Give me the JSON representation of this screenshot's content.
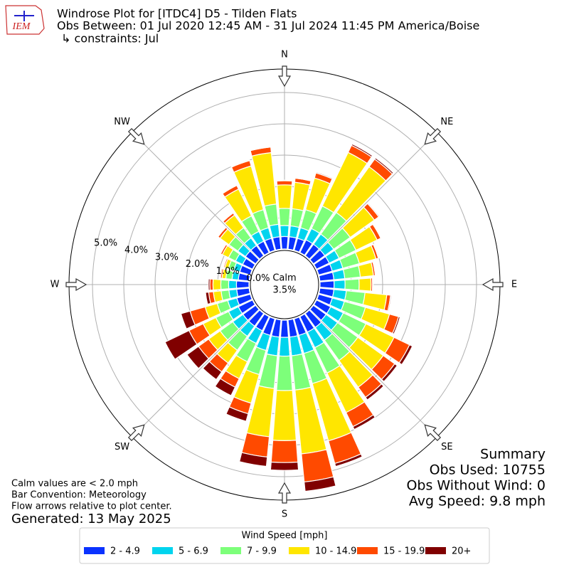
{
  "chart_data": {
    "type": "windrose",
    "title": "Windrose Plot for [ITDC4] D5 - Tilden Flats",
    "subtitle": [
      "Obs Between: 01 Jul 2020 12:45 AM - 31 Jul 2024 11:45 PM America/Boise",
      "↳ constraints: Jul"
    ],
    "x": [
      0,
      10,
      20,
      30,
      40,
      50,
      60,
      70,
      80,
      90,
      100,
      110,
      120,
      130,
      140,
      150,
      160,
      170,
      180,
      190,
      200,
      210,
      220,
      230,
      240,
      250,
      260,
      270,
      280,
      290,
      300,
      310,
      320,
      330,
      340,
      350
    ],
    "series": [
      {
        "name": "2 - 4.9",
        "color": "#0a32ff",
        "values": [
          0.4,
          0.4,
          0.4,
          0.45,
          0.45,
          0.45,
          0.45,
          0.45,
          0.45,
          0.45,
          0.45,
          0.45,
          0.5,
          0.5,
          0.55,
          0.55,
          0.55,
          0.55,
          0.55,
          0.55,
          0.55,
          0.5,
          0.5,
          0.5,
          0.5,
          0.45,
          0.4,
          0.4,
          0.35,
          0.35,
          0.35,
          0.4,
          0.4,
          0.4,
          0.4,
          0.4
        ]
      },
      {
        "name": "5 - 6.9",
        "color": "#00d4ee",
        "values": [
          0.35,
          0.35,
          0.35,
          0.4,
          0.4,
          0.35,
          0.35,
          0.35,
          0.35,
          0.35,
          0.4,
          0.4,
          0.45,
          0.45,
          0.5,
          0.55,
          0.6,
          0.6,
          0.6,
          0.6,
          0.5,
          0.45,
          0.4,
          0.4,
          0.35,
          0.3,
          0.25,
          0.25,
          0.2,
          0.2,
          0.25,
          0.3,
          0.3,
          0.35,
          0.35,
          0.4
        ]
      },
      {
        "name": "7 - 9.9",
        "color": "#7dff7a",
        "values": [
          0.55,
          0.55,
          0.6,
          0.8,
          0.85,
          0.65,
          0.6,
          0.55,
          0.5,
          0.45,
          0.6,
          0.7,
          0.8,
          0.8,
          0.8,
          0.9,
          1.0,
          1.1,
          1.1,
          1.05,
          0.8,
          0.65,
          0.55,
          0.5,
          0.45,
          0.35,
          0.25,
          0.25,
          0.2,
          0.18,
          0.25,
          0.35,
          0.4,
          0.55,
          0.6,
          0.65
        ]
      },
      {
        "name": "10 - 14.9",
        "color": "#ffe600",
        "values": [
          0.75,
          0.85,
          1.05,
          1.9,
          1.8,
          0.95,
          0.75,
          0.55,
          0.42,
          0.38,
          0.7,
          0.8,
          1.0,
          1.0,
          1.05,
          1.4,
          1.9,
          2.05,
          1.6,
          1.55,
          0.95,
          0.6,
          0.5,
          0.45,
          0.45,
          0.4,
          0.25,
          0.25,
          0.12,
          0.12,
          0.22,
          0.35,
          0.5,
          0.95,
          1.45,
          1.65
        ]
      },
      {
        "name": "15 - 19.9",
        "color": "#ff4a00",
        "values": [
          0.13,
          0.13,
          0.17,
          0.25,
          0.3,
          0.17,
          0.13,
          0.08,
          0.06,
          0.05,
          0.12,
          0.3,
          0.55,
          0.45,
          0.4,
          0.5,
          0.75,
          0.9,
          0.7,
          0.65,
          0.35,
          0.3,
          0.35,
          0.4,
          0.5,
          0.5,
          0.15,
          0.1,
          0.05,
          0.04,
          0.06,
          0.08,
          0.08,
          0.13,
          0.18,
          0.18
        ]
      },
      {
        "name": "20+",
        "color": "#800000",
        "values": [
          0.02,
          0.02,
          0.03,
          0.05,
          0.05,
          0.03,
          0.02,
          0.02,
          0.02,
          0.02,
          0.03,
          0.05,
          0.1,
          0.1,
          0.1,
          0.1,
          0.1,
          0.3,
          0.25,
          0.3,
          0.25,
          0.3,
          0.3,
          0.45,
          0.85,
          0.3,
          0.1,
          0.05,
          0.03,
          0.01,
          0.02,
          0.02,
          0.02,
          0.02,
          0.02,
          0.02
        ]
      }
    ],
    "rlim": [
      0,
      5.75
    ],
    "rticks": [
      {
        "value": 0,
        "label": "0.0%"
      },
      {
        "value": 1,
        "label": "1.0%"
      },
      {
        "value": 2,
        "label": "2.0%"
      },
      {
        "value": 3,
        "label": "3.0%"
      },
      {
        "value": 4,
        "label": "4.0%"
      },
      {
        "value": 5,
        "label": "5.0%"
      }
    ],
    "compass": [
      "N",
      "NE",
      "E",
      "SE",
      "S",
      "SW",
      "W",
      "NW"
    ],
    "calm": {
      "label": "Calm",
      "value": 3.5,
      "value_label": "3.5%"
    },
    "legend_title": "Wind Speed [mph]",
    "summary": [
      "Summary",
      "Obs Used: 10755",
      "Obs Without Wind: 0",
      "Avg Speed: 9.8 mph"
    ],
    "notes": [
      "Calm values are < 2.0 mph",
      "Bar Convention: Meteorology",
      "Flow arrows relative to plot center."
    ],
    "generated": "Generated: 13 May 2025",
    "logo": "IEM"
  }
}
